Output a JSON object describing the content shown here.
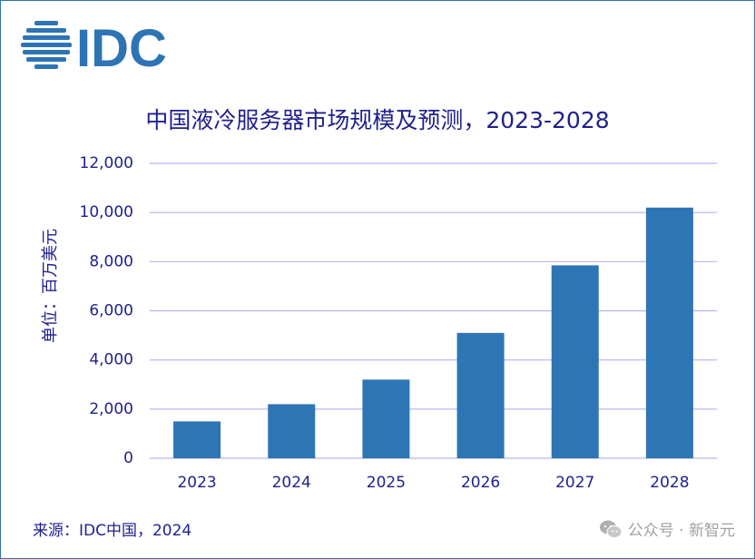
{
  "logo": {
    "text": "IDC",
    "color": "#2e74b5"
  },
  "colors": {
    "bar": "#2e75b6",
    "grid": "#b4b4f0",
    "text": "#1f1f8f"
  },
  "chart_data": {
    "type": "bar",
    "title": "中国液冷服务器市场规模及预测，2023-2028",
    "ylabel": "单位：百万美元",
    "xlabel": "",
    "categories": [
      "2023",
      "2024",
      "2025",
      "2026",
      "2027",
      "2028"
    ],
    "values": [
      1500,
      2200,
      3200,
      5100,
      7850,
      10200
    ],
    "ylim": [
      0,
      12000
    ],
    "yticks": [
      0,
      2000,
      4000,
      6000,
      8000,
      10000,
      12000
    ],
    "ytick_labels": [
      "0",
      "2,000",
      "4,000",
      "6,000",
      "8,000",
      "10,000",
      "12,000"
    ],
    "grid": true,
    "legend": "none"
  },
  "footer": {
    "source": "来源：IDC中国，2024",
    "watermark": "公众号 · 新智元",
    "watermark_icon": "wechat-icon"
  }
}
